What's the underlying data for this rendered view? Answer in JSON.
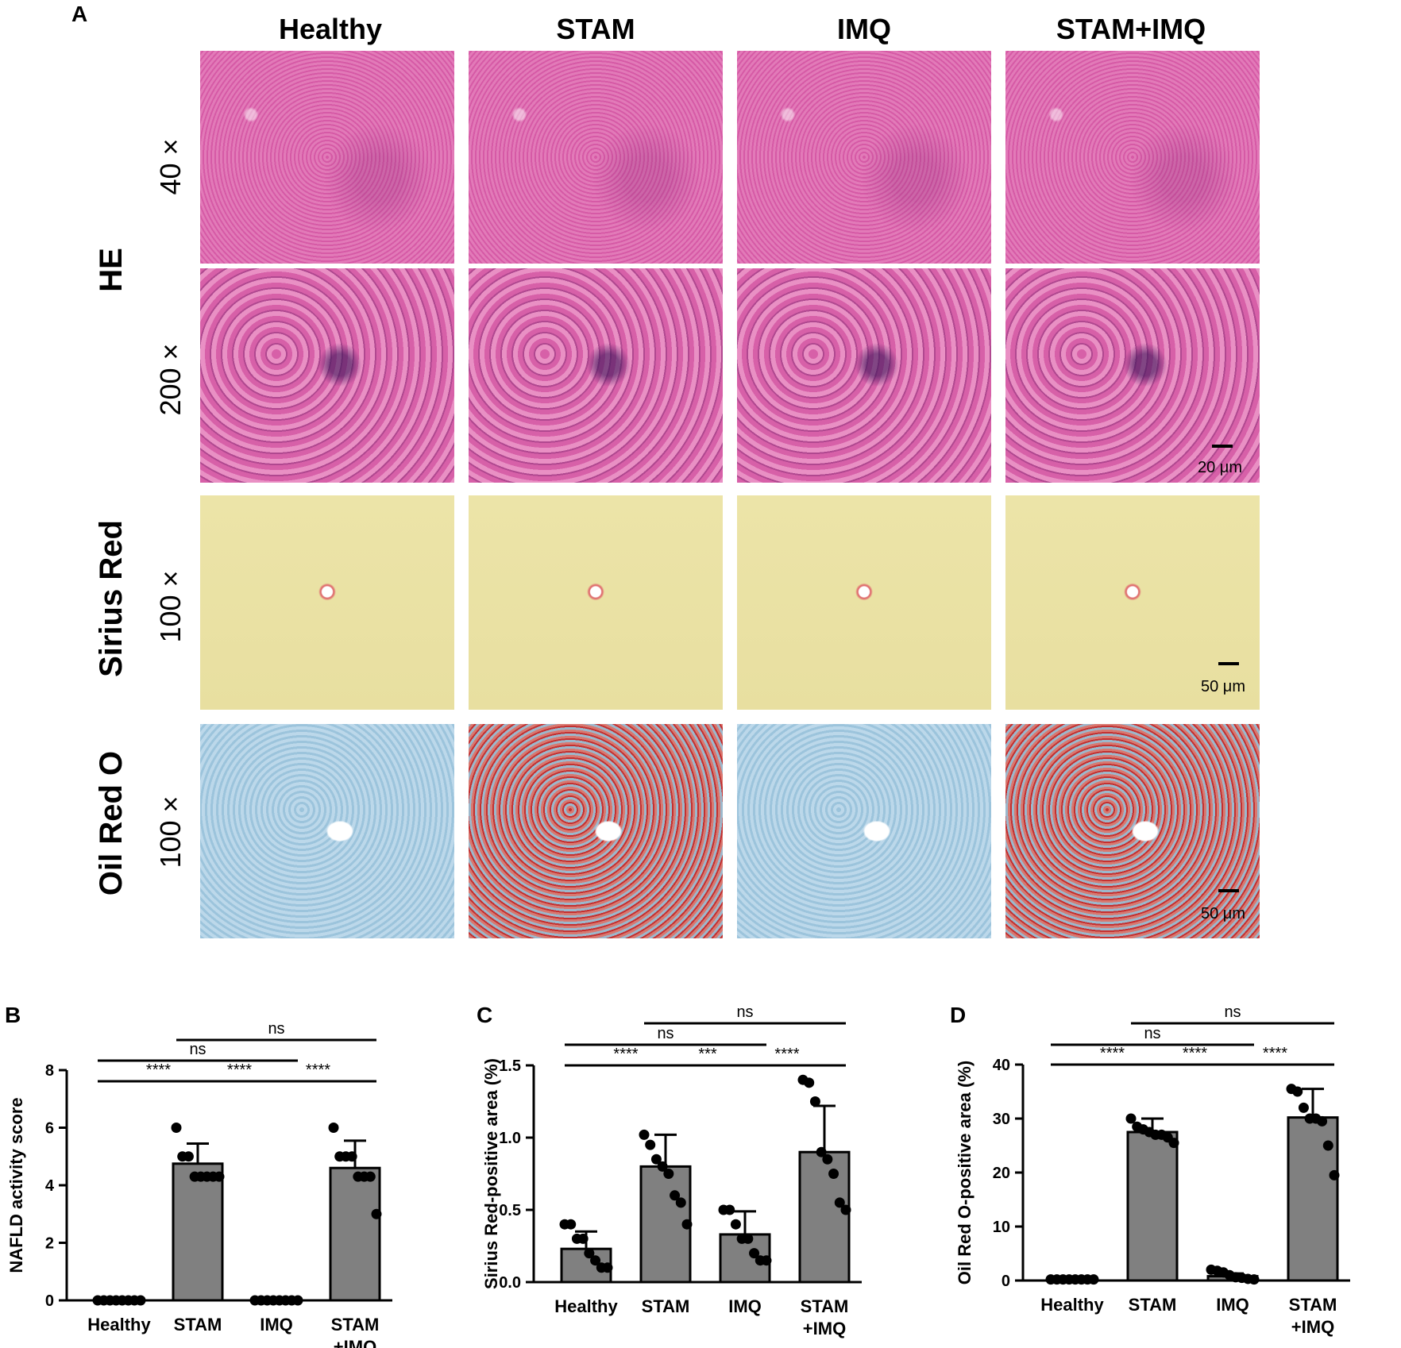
{
  "figure": {
    "panel_a": {
      "letter": "A",
      "columns": [
        "Healthy",
        "STAM",
        "IMQ",
        "STAM+IMQ"
      ],
      "stains": {
        "he": "HE",
        "sirius": "Sirius Red",
        "oro": "Oil Red O"
      },
      "magnifications": {
        "he_low": "40 ×",
        "he_high": "200 ×",
        "sirius": "100 ×",
        "oro": "100 ×"
      },
      "scale_bars": {
        "he": "20 μm",
        "sirius": "50 μm",
        "oro": "50 μm"
      }
    }
  },
  "chart_data": [
    {
      "panel": "B",
      "type": "bar",
      "ylabel": "NAFLD activity score",
      "ylim": [
        0,
        8
      ],
      "yticks": [
        0,
        2,
        4,
        6,
        8
      ],
      "categories": [
        "Healthy",
        "STAM",
        "IMQ",
        "STAM\n+IMQ"
      ],
      "values": [
        0,
        4.75,
        0,
        4.6
      ],
      "error": [
        0,
        0.7,
        0,
        0.95
      ],
      "points": [
        [
          0,
          0,
          0,
          0,
          0,
          0,
          0,
          0
        ],
        [
          6.0,
          5.0,
          5.0,
          4.3,
          4.3,
          4.3,
          4.3,
          4.3
        ],
        [
          0,
          0,
          0,
          0,
          0,
          0,
          0,
          0
        ],
        [
          6.0,
          5.0,
          5.0,
          5.0,
          4.3,
          4.3,
          4.3,
          3.0
        ]
      ],
      "significance": [
        {
          "from": 0,
          "to": 1,
          "label": "****",
          "level": 1
        },
        {
          "from": 1,
          "to": 2,
          "label": "****",
          "level": 1
        },
        {
          "from": 2,
          "to": 3,
          "label": "****",
          "level": 1
        },
        {
          "from": 0,
          "to": 2,
          "label": "ns",
          "level": 2
        },
        {
          "from": 1,
          "to": 3,
          "label": "ns",
          "level": 3
        }
      ]
    },
    {
      "panel": "C",
      "type": "bar",
      "ylabel": "Sirius Red-positive area (%)",
      "ylim": [
        0,
        1.5
      ],
      "yticks": [
        0.0,
        0.5,
        1.0,
        1.5
      ],
      "ytick_labels": [
        "0.0",
        "0.5",
        "1.0",
        "1.5"
      ],
      "categories": [
        "Healthy",
        "STAM",
        "IMQ",
        "STAM\n+IMQ"
      ],
      "values": [
        0.23,
        0.8,
        0.33,
        0.9
      ],
      "error": [
        0.12,
        0.22,
        0.16,
        0.32
      ],
      "points": [
        [
          0.4,
          0.4,
          0.3,
          0.3,
          0.2,
          0.15,
          0.1,
          0.1
        ],
        [
          1.02,
          0.95,
          0.85,
          0.8,
          0.75,
          0.6,
          0.55,
          0.4
        ],
        [
          0.5,
          0.5,
          0.4,
          0.3,
          0.3,
          0.2,
          0.15,
          0.15
        ],
        [
          1.4,
          1.38,
          1.25,
          0.9,
          0.85,
          0.75,
          0.55,
          0.5
        ]
      ],
      "significance": [
        {
          "from": 0,
          "to": 1,
          "label": "****",
          "level": 1
        },
        {
          "from": 1,
          "to": 2,
          "label": "***",
          "level": 1
        },
        {
          "from": 2,
          "to": 3,
          "label": "****",
          "level": 1
        },
        {
          "from": 0,
          "to": 2,
          "label": "ns",
          "level": 2
        },
        {
          "from": 1,
          "to": 3,
          "label": "ns",
          "level": 3
        }
      ]
    },
    {
      "panel": "D",
      "type": "bar",
      "ylabel": "Oil Red O-positive area (%)",
      "ylim": [
        0,
        40
      ],
      "yticks": [
        0,
        10,
        20,
        30,
        40
      ],
      "categories": [
        "Healthy",
        "STAM",
        "IMQ",
        "STAM\n+IMQ"
      ],
      "values": [
        0.2,
        27.5,
        0.8,
        30.2
      ],
      "error": [
        0,
        2.5,
        0.5,
        5.3
      ],
      "points": [
        [
          0.2,
          0.2,
          0.2,
          0.2,
          0.2,
          0.2,
          0.2,
          0.2
        ],
        [
          30.0,
          28.5,
          28.0,
          27.5,
          27.0,
          27.0,
          26.5,
          25.5
        ],
        [
          2.0,
          1.8,
          1.5,
          1.0,
          0.6,
          0.5,
          0.3,
          0.2
        ],
        [
          35.5,
          35.0,
          32.0,
          30.0,
          30.0,
          29.5,
          25.0,
          19.5
        ]
      ],
      "significance": [
        {
          "from": 0,
          "to": 1,
          "label": "****",
          "level": 1
        },
        {
          "from": 1,
          "to": 2,
          "label": "****",
          "level": 1
        },
        {
          "from": 2,
          "to": 3,
          "label": "****",
          "level": 1
        },
        {
          "from": 0,
          "to": 2,
          "label": "ns",
          "level": 2
        },
        {
          "from": 1,
          "to": 3,
          "label": "ns",
          "level": 3
        }
      ]
    }
  ]
}
